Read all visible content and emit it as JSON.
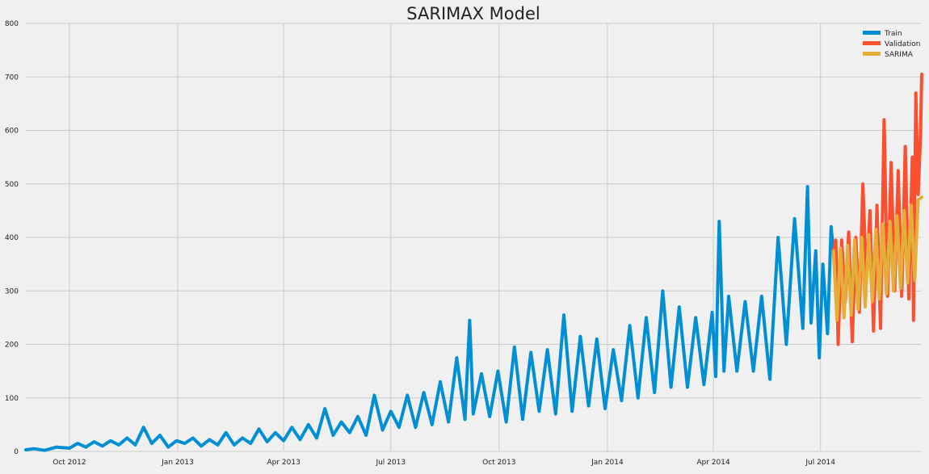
{
  "chart_data": {
    "type": "line",
    "title": "SARIMAX Model",
    "xlabel": "",
    "ylabel": "",
    "xlim": [
      "2012-08-25",
      "2014-09-25"
    ],
    "ylim": [
      0,
      800
    ],
    "yticks": [
      0,
      100,
      200,
      300,
      400,
      500,
      600,
      700,
      800
    ],
    "xticks": [
      {
        "date": "2012-10-01",
        "label": "Oct 2012"
      },
      {
        "date": "2013-01-01",
        "label": "Jan 2013"
      },
      {
        "date": "2013-04-01",
        "label": "Apr 2013"
      },
      {
        "date": "2013-07-01",
        "label": "Jul 2013"
      },
      {
        "date": "2013-10-01",
        "label": "Oct 2013"
      },
      {
        "date": "2014-01-01",
        "label": "Jan 2014"
      },
      {
        "date": "2014-04-01",
        "label": "Apr 2014"
      },
      {
        "date": "2014-07-01",
        "label": "Jul 2014"
      }
    ],
    "grid": true,
    "legend_position": "top-right",
    "series": [
      {
        "name": "Train",
        "color": "#008fd5",
        "points": [
          [
            "2012-08-25",
            3
          ],
          [
            "2012-09-01",
            5
          ],
          [
            "2012-09-10",
            2
          ],
          [
            "2012-09-20",
            8
          ],
          [
            "2012-10-01",
            6
          ],
          [
            "2012-10-08",
            15
          ],
          [
            "2012-10-15",
            8
          ],
          [
            "2012-10-22",
            18
          ],
          [
            "2012-10-29",
            10
          ],
          [
            "2012-11-05",
            20
          ],
          [
            "2012-11-12",
            12
          ],
          [
            "2012-11-19",
            25
          ],
          [
            "2012-11-26",
            12
          ],
          [
            "2012-12-03",
            45
          ],
          [
            "2012-12-10",
            15
          ],
          [
            "2012-12-17",
            30
          ],
          [
            "2012-12-24",
            8
          ],
          [
            "2012-12-31",
            20
          ],
          [
            "2013-01-07",
            15
          ],
          [
            "2013-01-14",
            25
          ],
          [
            "2013-01-21",
            10
          ],
          [
            "2013-01-28",
            22
          ],
          [
            "2013-02-04",
            12
          ],
          [
            "2013-02-11",
            35
          ],
          [
            "2013-02-18",
            12
          ],
          [
            "2013-02-25",
            25
          ],
          [
            "2013-03-04",
            15
          ],
          [
            "2013-03-11",
            42
          ],
          [
            "2013-03-18",
            18
          ],
          [
            "2013-03-25",
            35
          ],
          [
            "2013-04-01",
            20
          ],
          [
            "2013-04-08",
            45
          ],
          [
            "2013-04-15",
            22
          ],
          [
            "2013-04-22",
            50
          ],
          [
            "2013-04-29",
            25
          ],
          [
            "2013-05-06",
            80
          ],
          [
            "2013-05-13",
            30
          ],
          [
            "2013-05-20",
            55
          ],
          [
            "2013-05-27",
            35
          ],
          [
            "2013-06-03",
            65
          ],
          [
            "2013-06-10",
            30
          ],
          [
            "2013-06-17",
            105
          ],
          [
            "2013-06-24",
            40
          ],
          [
            "2013-07-01",
            75
          ],
          [
            "2013-07-08",
            45
          ],
          [
            "2013-07-15",
            105
          ],
          [
            "2013-07-22",
            45
          ],
          [
            "2013-07-29",
            110
          ],
          [
            "2013-08-05",
            50
          ],
          [
            "2013-08-12",
            130
          ],
          [
            "2013-08-19",
            55
          ],
          [
            "2013-08-26",
            175
          ],
          [
            "2013-09-02",
            60
          ],
          [
            "2013-09-06",
            245
          ],
          [
            "2013-09-09",
            70
          ],
          [
            "2013-09-16",
            145
          ],
          [
            "2013-09-23",
            65
          ],
          [
            "2013-09-30",
            150
          ],
          [
            "2013-10-07",
            55
          ],
          [
            "2013-10-14",
            195
          ],
          [
            "2013-10-21",
            60
          ],
          [
            "2013-10-28",
            185
          ],
          [
            "2013-11-04",
            75
          ],
          [
            "2013-11-11",
            190
          ],
          [
            "2013-11-18",
            70
          ],
          [
            "2013-11-25",
            255
          ],
          [
            "2013-12-02",
            75
          ],
          [
            "2013-12-09",
            215
          ],
          [
            "2013-12-16",
            85
          ],
          [
            "2013-12-23",
            210
          ],
          [
            "2013-12-30",
            80
          ],
          [
            "2014-01-06",
            190
          ],
          [
            "2014-01-13",
            95
          ],
          [
            "2014-01-20",
            235
          ],
          [
            "2014-01-27",
            100
          ],
          [
            "2014-02-03",
            250
          ],
          [
            "2014-02-10",
            110
          ],
          [
            "2014-02-17",
            300
          ],
          [
            "2014-02-24",
            120
          ],
          [
            "2014-03-03",
            270
          ],
          [
            "2014-03-10",
            120
          ],
          [
            "2014-03-17",
            250
          ],
          [
            "2014-03-24",
            125
          ],
          [
            "2014-03-31",
            260
          ],
          [
            "2014-04-03",
            140
          ],
          [
            "2014-04-06",
            430
          ],
          [
            "2014-04-10",
            150
          ],
          [
            "2014-04-14",
            290
          ],
          [
            "2014-04-21",
            150
          ],
          [
            "2014-04-28",
            280
          ],
          [
            "2014-05-05",
            150
          ],
          [
            "2014-05-12",
            290
          ],
          [
            "2014-05-19",
            135
          ],
          [
            "2014-05-26",
            400
          ],
          [
            "2014-06-02",
            200
          ],
          [
            "2014-06-09",
            435
          ],
          [
            "2014-06-16",
            230
          ],
          [
            "2014-06-20",
            495
          ],
          [
            "2014-06-23",
            240
          ],
          [
            "2014-06-27",
            375
          ],
          [
            "2014-06-30",
            175
          ],
          [
            "2014-07-03",
            350
          ],
          [
            "2014-07-07",
            220
          ],
          [
            "2014-07-10",
            420
          ],
          [
            "2014-07-12",
            375
          ]
        ]
      },
      {
        "name": "Validation",
        "color": "#fc4f30",
        "points": [
          [
            "2014-07-12",
            375
          ],
          [
            "2014-07-14",
            395
          ],
          [
            "2014-07-16",
            200
          ],
          [
            "2014-07-19",
            395
          ],
          [
            "2014-07-22",
            280
          ],
          [
            "2014-07-25",
            410
          ],
          [
            "2014-07-28",
            205
          ],
          [
            "2014-07-31",
            400
          ],
          [
            "2014-08-03",
            260
          ],
          [
            "2014-08-06",
            500
          ],
          [
            "2014-08-09",
            320
          ],
          [
            "2014-08-12",
            450
          ],
          [
            "2014-08-15",
            225
          ],
          [
            "2014-08-18",
            460
          ],
          [
            "2014-08-21",
            230
          ],
          [
            "2014-08-24",
            620
          ],
          [
            "2014-08-27",
            290
          ],
          [
            "2014-08-30",
            540
          ],
          [
            "2014-09-02",
            300
          ],
          [
            "2014-09-05",
            525
          ],
          [
            "2014-09-08",
            290
          ],
          [
            "2014-09-11",
            570
          ],
          [
            "2014-09-14",
            285
          ],
          [
            "2014-09-17",
            550
          ],
          [
            "2014-09-18",
            245
          ],
          [
            "2014-09-20",
            670
          ],
          [
            "2014-09-22",
            480
          ],
          [
            "2014-09-24",
            590
          ],
          [
            "2014-09-25",
            705
          ]
        ]
      },
      {
        "name": "SARIMA",
        "color": "#e5ae38",
        "points": [
          [
            "2014-07-12",
            375
          ],
          [
            "2014-07-15",
            245
          ],
          [
            "2014-07-18",
            380
          ],
          [
            "2014-07-21",
            250
          ],
          [
            "2014-07-24",
            385
          ],
          [
            "2014-07-27",
            255
          ],
          [
            "2014-07-30",
            395
          ],
          [
            "2014-08-02",
            265
          ],
          [
            "2014-08-05",
            400
          ],
          [
            "2014-08-08",
            270
          ],
          [
            "2014-08-11",
            405
          ],
          [
            "2014-08-14",
            280
          ],
          [
            "2014-08-17",
            415
          ],
          [
            "2014-08-20",
            285
          ],
          [
            "2014-08-23",
            425
          ],
          [
            "2014-08-26",
            295
          ],
          [
            "2014-08-29",
            430
          ],
          [
            "2014-09-01",
            300
          ],
          [
            "2014-09-04",
            440
          ],
          [
            "2014-09-07",
            305
          ],
          [
            "2014-09-10",
            450
          ],
          [
            "2014-09-13",
            315
          ],
          [
            "2014-09-16",
            460
          ],
          [
            "2014-09-19",
            320
          ],
          [
            "2014-09-22",
            470
          ],
          [
            "2014-09-25",
            475
          ]
        ]
      }
    ]
  }
}
